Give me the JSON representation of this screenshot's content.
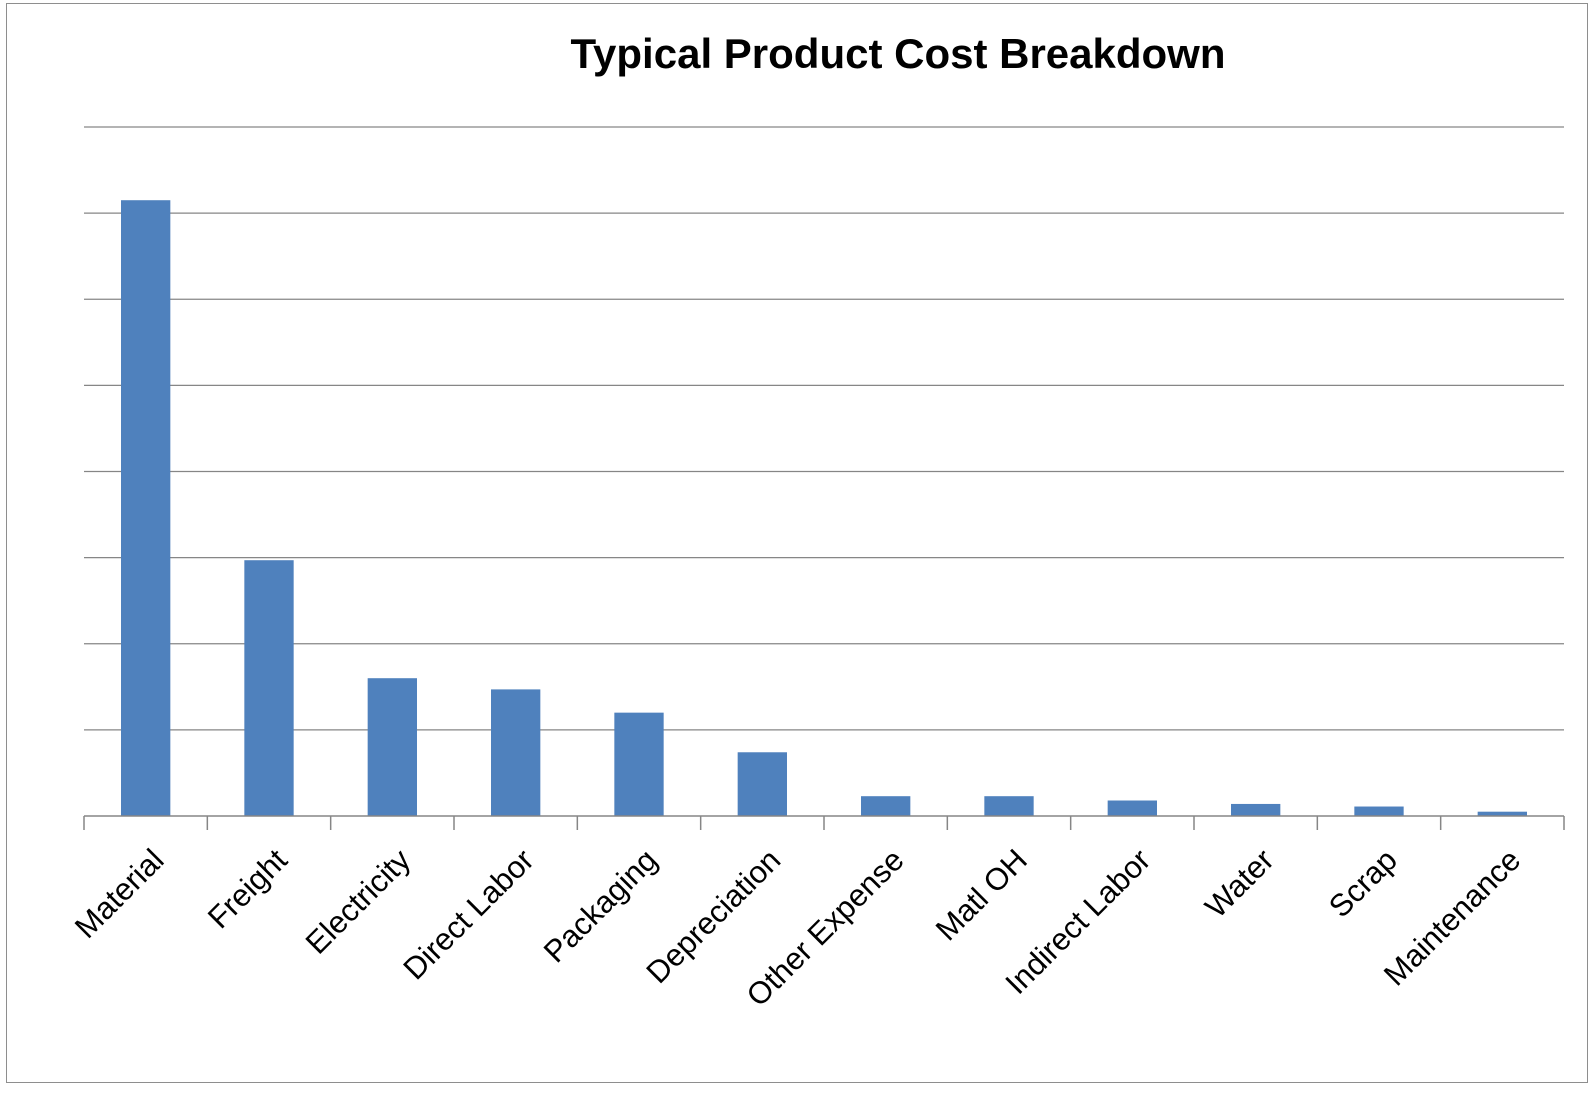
{
  "chart_data": {
    "type": "bar",
    "title": "Typical Product Cost Breakdown",
    "xlabel": "",
    "ylabel": "",
    "categories": [
      "Material",
      "Freight",
      "Electricity",
      "Direct Labor",
      "Packaging",
      "Depreciation",
      "Other Expense",
      "Matl OH",
      "Indirect Labor",
      "Water",
      "Scrap",
      "Maintenance"
    ],
    "values": [
      7.15,
      2.97,
      1.6,
      1.47,
      1.2,
      0.74,
      0.23,
      0.23,
      0.18,
      0.14,
      0.11,
      0.05
    ],
    "ylim": [
      0,
      8
    ],
    "y_gridlines": 8,
    "grid": true,
    "legend": "none",
    "y_tick_labels_visible": false,
    "bar_color": "#4f81bd",
    "gridline_color": "#868686"
  }
}
